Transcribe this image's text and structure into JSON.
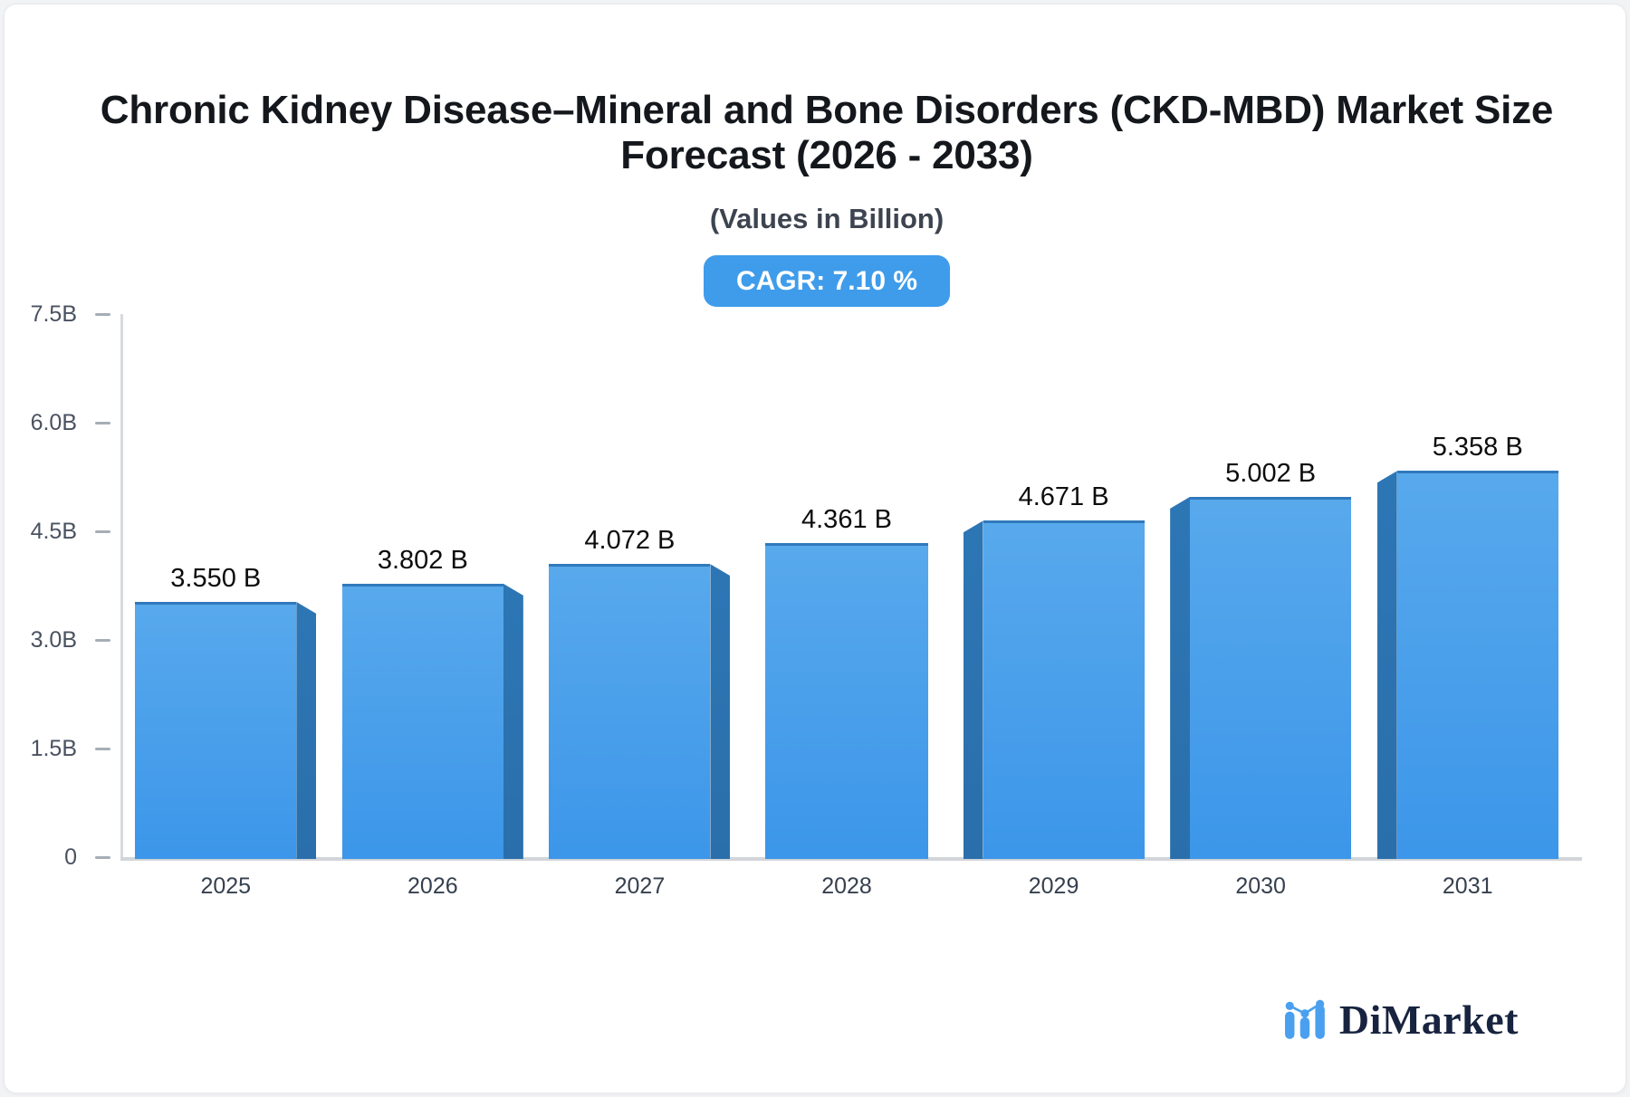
{
  "header": {
    "title": "Chronic Kidney Disease–Mineral and Bone Disorders (CKD-MBD) Market Size\nForecast (2026 - 2033)",
    "subtitle": "(Values in Billion)",
    "cagr_label": "CAGR: 7.10 %"
  },
  "chart_data": {
    "type": "bar",
    "title": "Chronic Kidney Disease–Mineral and Bone Disorders (CKD-MBD) Market Size Forecast (2026 - 2033)",
    "values_in": "Billion",
    "cagr_percent": 7.1,
    "categories": [
      "2025",
      "2026",
      "2027",
      "2028",
      "2029",
      "2030",
      "2031"
    ],
    "values": [
      3.55,
      3.802,
      4.072,
      4.361,
      4.671,
      5.002,
      5.358
    ],
    "bar_labels": [
      "3.550 B",
      "3.802 B",
      "4.072 B",
      "4.361 B",
      "4.671 B",
      "5.002 B",
      "5.358 B"
    ],
    "ylim": [
      0,
      7.5
    ],
    "y_ticks": [
      "7.5B",
      "6.0B",
      "4.5B",
      "3.0B",
      "1.5B",
      "0"
    ],
    "grid": "off",
    "legend": "none",
    "style_3d": "perspective extrusion toward center bar",
    "colors": {
      "bar_face_top": "#58a9ec",
      "bar_face_bottom": "#3c96e9",
      "bar_edge": "#3079bd",
      "bar_side": "#2d76b5",
      "bar_side_dark": "#2a6fab",
      "badge_bg": "#3f9cea",
      "badge_text": "#ffffff",
      "axis_line": "#d2d5d9",
      "logo_blue": "#4aa0ef",
      "logo_navy": "#17233f"
    }
  },
  "brand": {
    "name": "DiMarket"
  }
}
